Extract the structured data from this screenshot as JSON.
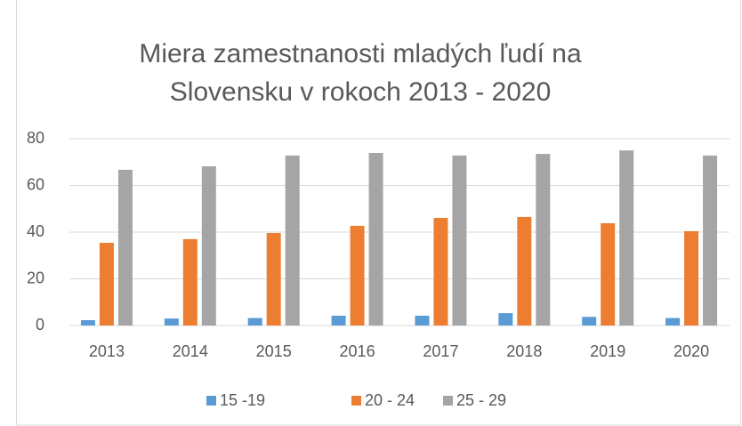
{
  "chart_data": {
    "type": "bar",
    "title": [
      "Miera zamestnanosti mladých ľudí na",
      "Slovensku v rokoch 2013 - 2020"
    ],
    "categories": [
      "2013",
      "2014",
      "2015",
      "2016",
      "2017",
      "2018",
      "2019",
      "2020"
    ],
    "series": [
      {
        "name": "15 -19",
        "color": "#5b9bd5",
        "values": [
          2.3,
          3.0,
          3.2,
          4.2,
          4.2,
          5.3,
          3.7,
          3.2
        ]
      },
      {
        "name": "20 - 24",
        "color": "#ed7d31",
        "values": [
          35.4,
          37.0,
          39.6,
          42.7,
          46.1,
          46.5,
          43.8,
          40.4
        ]
      },
      {
        "name": "25 - 29",
        "color": "#a5a5a5",
        "values": [
          66.7,
          68.2,
          72.8,
          73.9,
          72.8,
          73.5,
          75.0,
          72.8
        ]
      }
    ],
    "ylim": [
      0,
      80
    ],
    "yticks": [
      0,
      20,
      40,
      60,
      80
    ],
    "grid": true,
    "legend": "bottom"
  }
}
